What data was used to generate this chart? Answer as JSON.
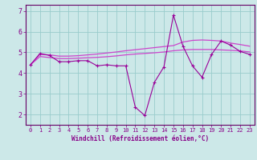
{
  "xlabel": "Windchill (Refroidissement éolien,°C)",
  "bg_color": "#cce8e8",
  "line_color_main": "#990099",
  "line_color_smooth": "#cc44cc",
  "grid_color": "#99cccc",
  "axis_color": "#660066",
  "tick_color": "#880088",
  "hours": [
    0,
    1,
    2,
    3,
    4,
    5,
    6,
    7,
    8,
    9,
    10,
    11,
    12,
    13,
    14,
    15,
    16,
    17,
    18,
    19,
    20,
    21,
    22,
    23
  ],
  "windchill": [
    4.4,
    4.95,
    4.85,
    4.55,
    4.55,
    4.6,
    4.6,
    4.35,
    4.4,
    4.35,
    4.35,
    2.35,
    1.95,
    3.55,
    4.3,
    6.8,
    5.3,
    4.35,
    3.8,
    4.9,
    5.55,
    5.35,
    5.05,
    4.9
  ],
  "smooth1": [
    4.4,
    4.8,
    4.75,
    4.7,
    4.7,
    4.72,
    4.74,
    4.76,
    4.79,
    4.83,
    4.88,
    4.92,
    4.95,
    4.98,
    5.02,
    5.08,
    5.12,
    5.14,
    5.14,
    5.14,
    5.12,
    5.1,
    5.07,
    5.02
  ],
  "smooth2": [
    4.4,
    4.9,
    4.88,
    4.82,
    4.82,
    4.84,
    4.88,
    4.92,
    4.97,
    5.02,
    5.08,
    5.13,
    5.18,
    5.23,
    5.28,
    5.33,
    5.5,
    5.58,
    5.6,
    5.58,
    5.55,
    5.45,
    5.38,
    5.3
  ],
  "ylim": [
    1.5,
    7.3
  ],
  "yticks": [
    2,
    3,
    4,
    5,
    6,
    7
  ],
  "xlim": [
    -0.5,
    23.5
  ],
  "figsize": [
    3.2,
    2.0
  ],
  "dpi": 100
}
